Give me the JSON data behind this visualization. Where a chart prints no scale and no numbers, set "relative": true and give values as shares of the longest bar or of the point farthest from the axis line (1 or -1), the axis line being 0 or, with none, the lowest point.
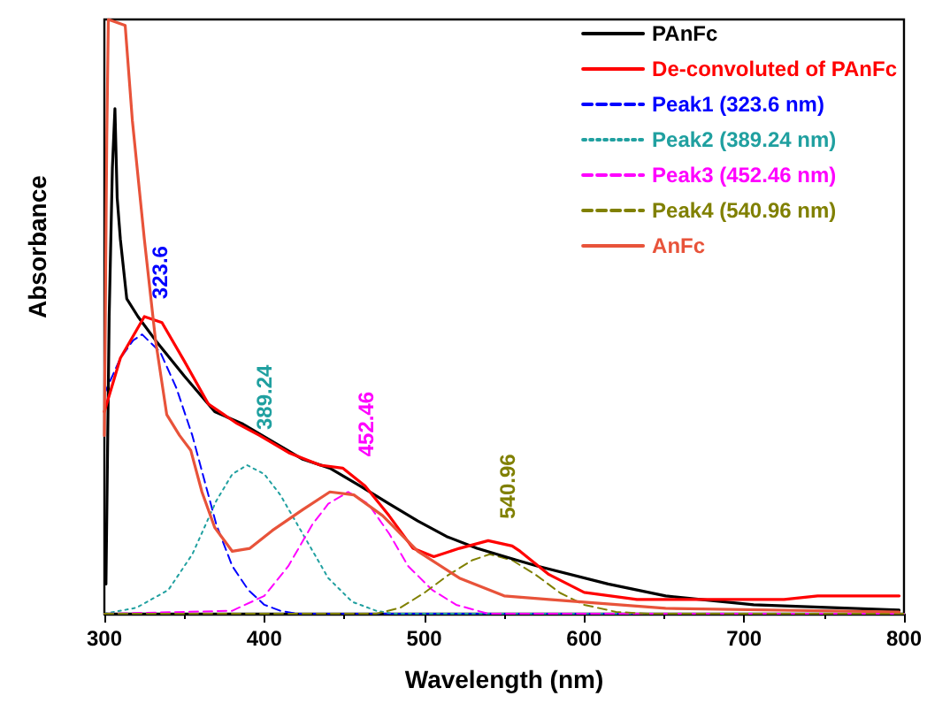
{
  "chart_data": {
    "type": "line",
    "relative": true,
    "xlabel": "Wavelength (nm)",
    "ylabel": "Absorbance",
    "xlim": [
      300,
      800
    ],
    "xticks": [
      300,
      400,
      500,
      600,
      700,
      800
    ],
    "legend": "top right",
    "marker": "none",
    "series": [
      {
        "name": "PAnFc",
        "color": "#000000",
        "line_style": "solid",
        "x": [
          301,
          303,
          305,
          306.6,
          308,
          310,
          314,
          321,
          332,
          350,
          369,
          386,
          405,
          424,
          441,
          460,
          478,
          496,
          514,
          533,
          558,
          571,
          615,
          651,
          706,
          797
        ],
        "values": [
          0.05,
          0.5,
          0.75,
          0.85,
          0.7,
          0.63,
          0.53,
          0.5,
          0.46,
          0.4,
          0.34,
          0.32,
          0.29,
          0.26,
          0.245,
          0.215,
          0.185,
          0.156,
          0.13,
          0.11,
          0.09,
          0.08,
          0.05,
          0.03,
          0.015,
          0.006
        ]
      },
      {
        "name": "De-convoluted of PAnFc",
        "color": "#ff0000",
        "line_style": "solid",
        "x": [
          300,
          310,
          325,
          336,
          350,
          365,
          383,
          397,
          416,
          435,
          449,
          463,
          478,
          493,
          506,
          522,
          540,
          555,
          560,
          578,
          600,
          633,
          725,
          746,
          797
        ],
        "values": [
          0.34,
          0.43,
          0.5,
          0.49,
          0.425,
          0.353,
          0.32,
          0.3,
          0.27,
          0.25,
          0.245,
          0.215,
          0.165,
          0.11,
          0.096,
          0.11,
          0.123,
          0.114,
          0.105,
          0.066,
          0.036,
          0.024,
          0.024,
          0.03,
          0.03
        ]
      },
      {
        "name": "Peak1 (323.6 nm)",
        "color": "#0000ff",
        "line_style": "dashed",
        "x": [
          300,
          310,
          318,
          323.6,
          335,
          345,
          355,
          365,
          370,
          380,
          390,
          400,
          410,
          420,
          800
        ],
        "values": [
          0.37,
          0.43,
          0.46,
          0.47,
          0.44,
          0.38,
          0.3,
          0.2,
          0.15,
          0.08,
          0.04,
          0.015,
          0.005,
          0,
          0
        ]
      },
      {
        "name": "Peak2 (389.24 nm)",
        "color": "#20a0a0",
        "line_style": "dotted",
        "x": [
          300,
          320,
          340,
          355,
          370,
          380,
          389.24,
          400,
          410,
          425,
          440,
          455,
          470,
          480,
          800
        ],
        "values": [
          0,
          0.01,
          0.04,
          0.1,
          0.19,
          0.235,
          0.25,
          0.235,
          0.2,
          0.13,
          0.06,
          0.02,
          0.005,
          0,
          0
        ]
      },
      {
        "name": "Peak3 (452.46 nm)",
        "color": "#ff00ff",
        "line_style": "dashed",
        "x": [
          300,
          380,
          400,
          415,
          430,
          440,
          452.46,
          465,
          478,
          490,
          505,
          520,
          540,
          800
        ],
        "values": [
          0,
          0.005,
          0.03,
          0.08,
          0.15,
          0.185,
          0.205,
          0.185,
          0.135,
          0.08,
          0.04,
          0.015,
          0,
          0
        ]
      },
      {
        "name": "Peak4 (540.96 nm)",
        "color": "#808000",
        "line_style": "dashed",
        "x": [
          300,
          470,
          485,
          500,
          515,
          530,
          540.96,
          555,
          570,
          585,
          600,
          620,
          640,
          800
        ],
        "values": [
          0,
          0,
          0.01,
          0.035,
          0.065,
          0.09,
          0.1,
          0.09,
          0.065,
          0.035,
          0.015,
          0.003,
          0,
          0
        ]
      },
      {
        "name": "AnFc",
        "color": "#e8533a",
        "line_style": "solid",
        "x": [
          300,
          301.5,
          302.5,
          313,
          317.5,
          325,
          332,
          339,
          347,
          354,
          361,
          369,
          380,
          391,
          405,
          424,
          441,
          456,
          474,
          496,
          522,
          550,
          578,
          651,
          797
        ],
        "values": [
          0.3,
          0.8,
          1,
          0.99,
          0.83,
          0.63,
          0.46,
          0.335,
          0.3,
          0.275,
          0.205,
          0.145,
          0.105,
          0.11,
          0.14,
          0.175,
          0.205,
          0.2,
          0.165,
          0.105,
          0.06,
          0.03,
          0.024,
          0.009,
          0.003
        ]
      }
    ],
    "annotations": [
      {
        "text": "323.6",
        "x": 323.6,
        "y": 0.47
      },
      {
        "text": "389.24",
        "x": 389.24,
        "y": 0.25
      },
      {
        "text": "452.46",
        "x": 452.46,
        "y": 0.205
      },
      {
        "text": "540.96",
        "x": 540.96,
        "y": 0.1
      }
    ]
  }
}
